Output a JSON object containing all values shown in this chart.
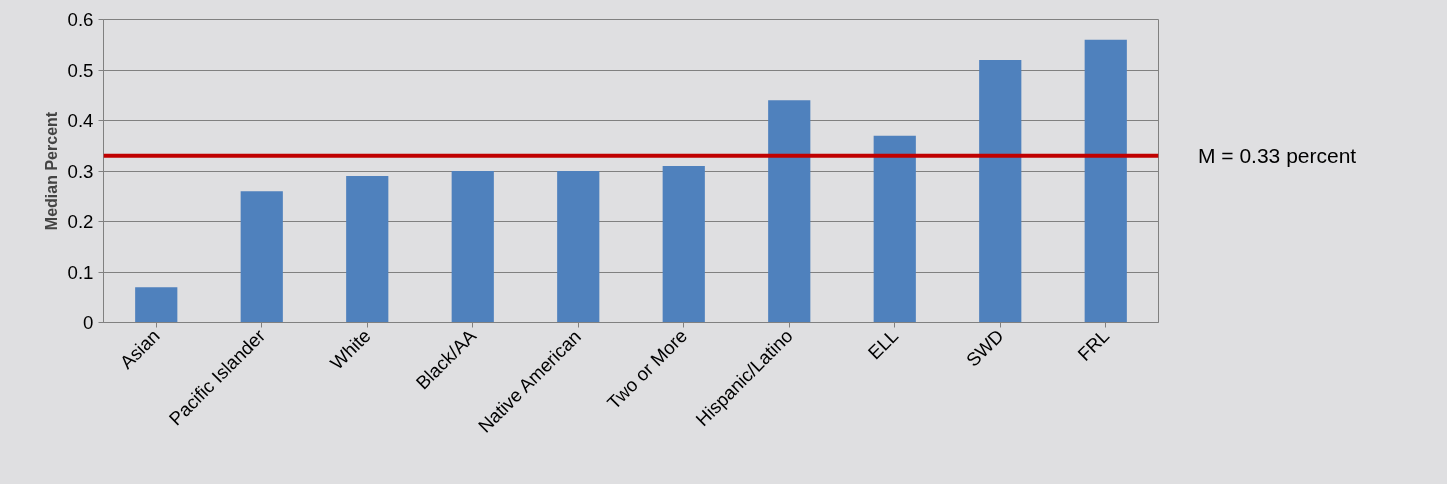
{
  "chart_data": {
    "type": "bar",
    "ylabel": "Median Percent",
    "categories": [
      "Asian",
      "Pacific Islander",
      "White",
      "Black/AA",
      "Native American",
      "Two or More",
      "Hispanic/Latino",
      "ELL",
      "SWD",
      "FRL"
    ],
    "values": [
      0.07,
      0.26,
      0.29,
      0.3,
      0.3,
      0.31,
      0.44,
      0.37,
      0.52,
      0.56
    ],
    "color": "#4f81bd",
    "ylim": [
      0,
      0.6
    ],
    "yticks": [
      0,
      0.1,
      0.2,
      0.3,
      0.4,
      0.5,
      0.6
    ],
    "grid": "y",
    "ref_lines": [
      {
        "axis": "y",
        "value": 0.33,
        "label": "M = 0.33 percent",
        "color": "#c00000"
      }
    ]
  }
}
